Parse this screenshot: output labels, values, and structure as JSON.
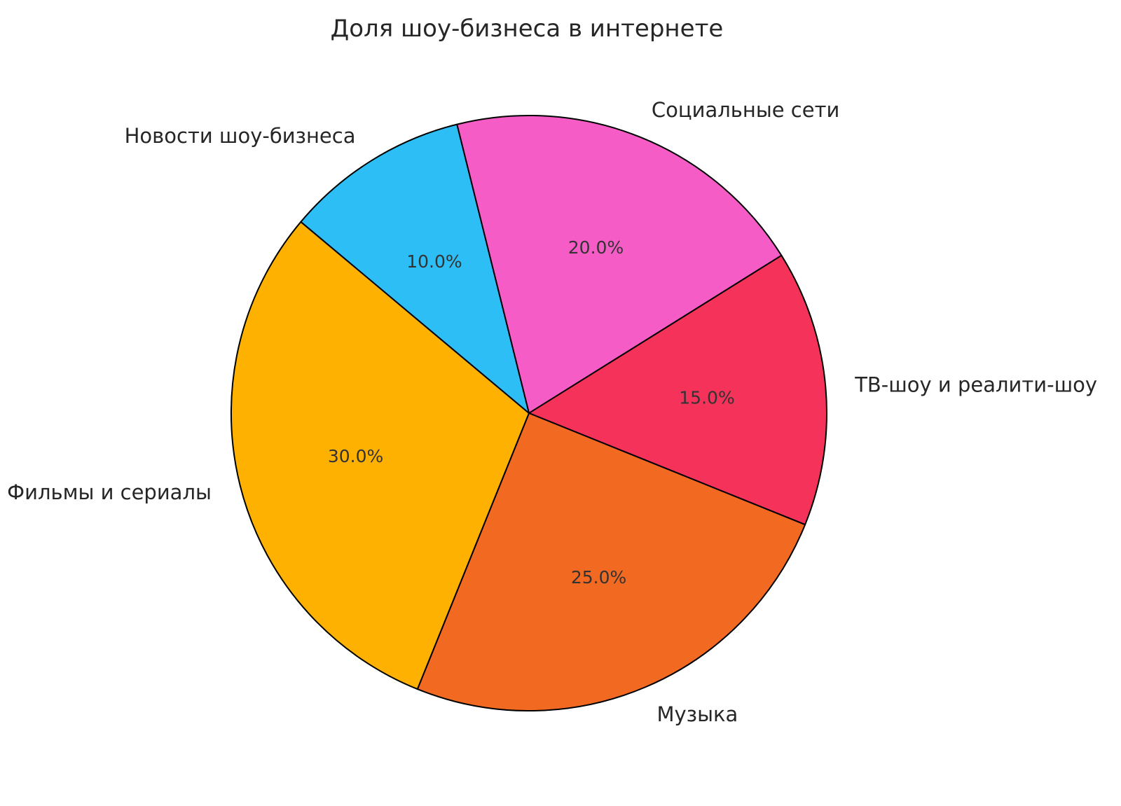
{
  "chart_data": {
    "type": "pie",
    "title": "Доля шоу-бизнеса в интернете",
    "slices": [
      {
        "label": "Социальные сети",
        "value": 20.0,
        "pct_label": "20.0%",
        "color": "#F55CC6"
      },
      {
        "label": "ТВ-шоу и реалити-шоу",
        "value": 15.0,
        "pct_label": "15.0%",
        "color": "#F4325A"
      },
      {
        "label": "Музыка",
        "value": 25.0,
        "pct_label": "25.0%",
        "color": "#F26A21"
      },
      {
        "label": "Фильмы и сериалы",
        "value": 30.0,
        "pct_label": "30.0%",
        "color": "#FFB102"
      },
      {
        "label": "Новости шоу-бизнеса",
        "value": 10.0,
        "pct_label": "10.0%",
        "color": "#2DBEF6"
      }
    ],
    "start_angle_deg": 104,
    "direction": "clockwise",
    "edge_color": "#000000",
    "text_color": "#262626",
    "background": "#FFFFFF",
    "legend": "none",
    "grid": "off"
  }
}
